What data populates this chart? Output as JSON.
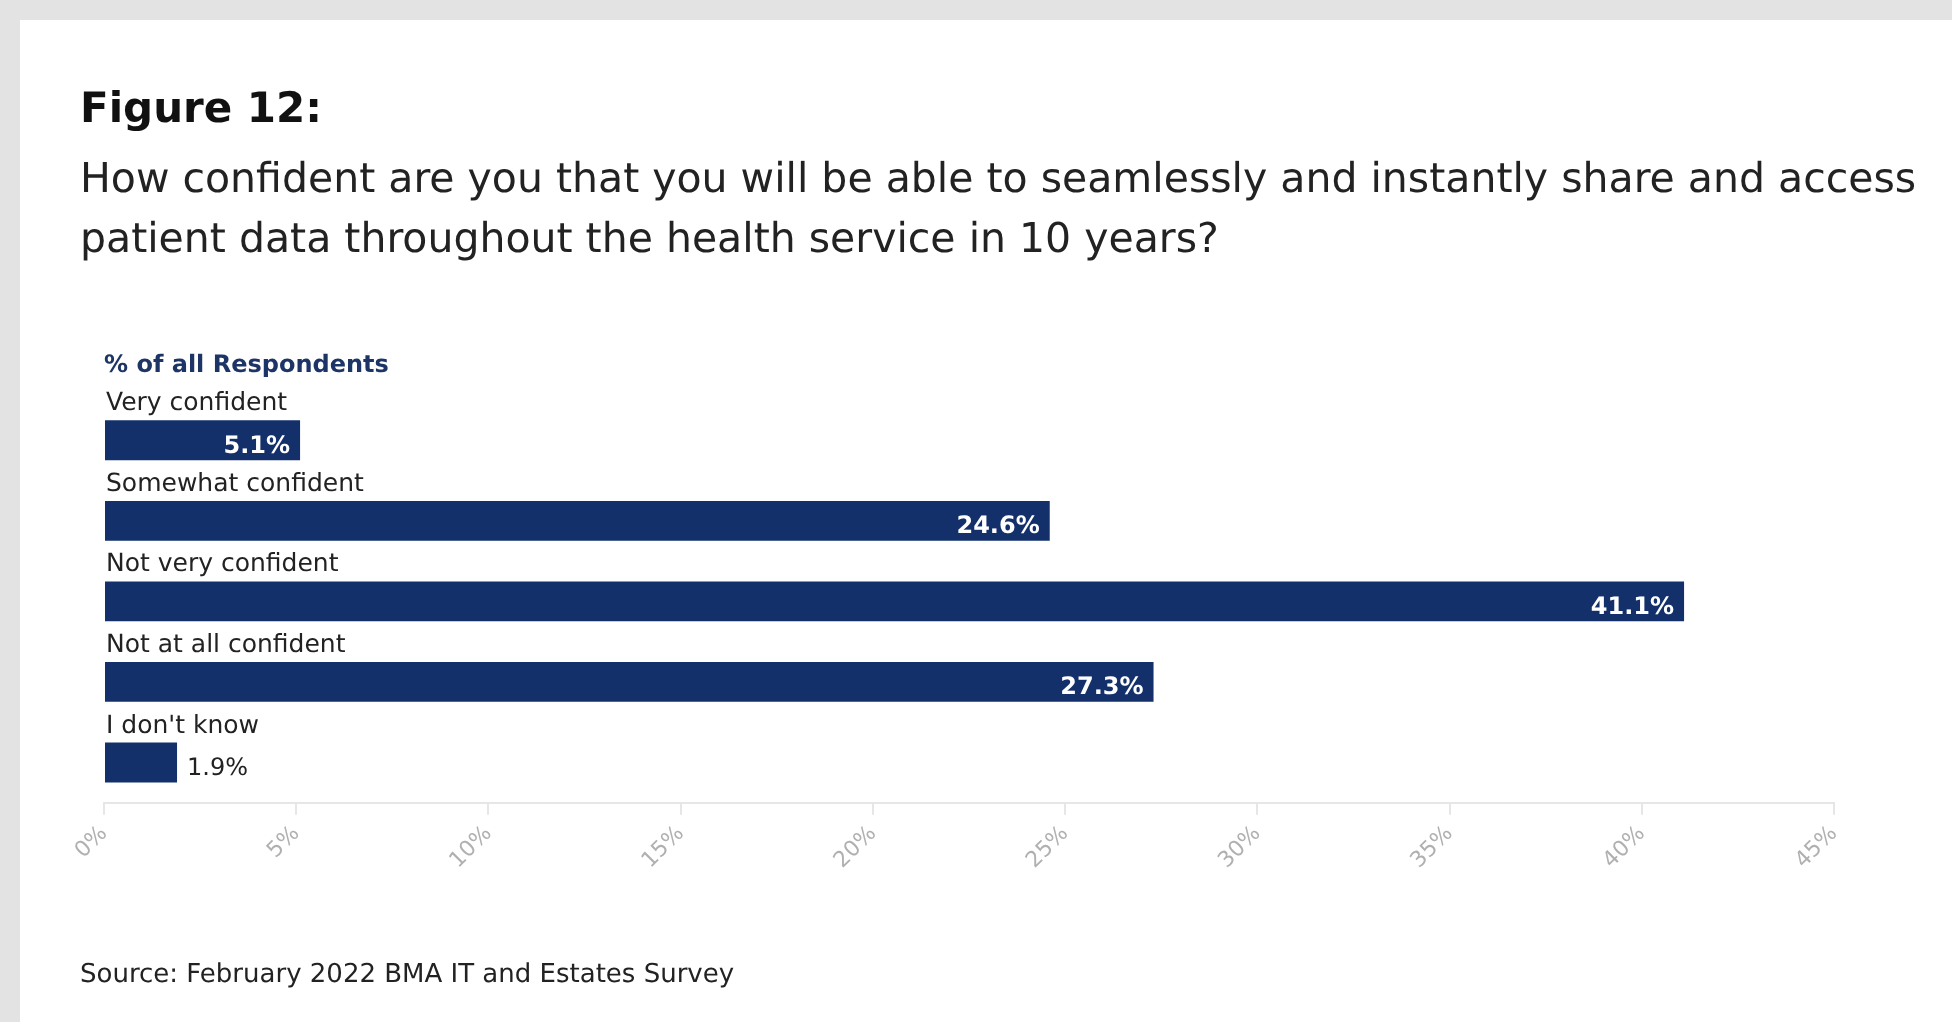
{
  "chart_data": {
    "type": "bar",
    "orientation": "horizontal",
    "title": "Figure 12:",
    "subtitle": "How confident are you that you will be able to seamlessly and instantly share and access patient data throughout the health service in 10 years?",
    "xlabel": "% of all Respondents",
    "categories": [
      "Very confident",
      "Somewhat confident",
      "Not very confident",
      "Not at all confident",
      "I don't know"
    ],
    "values": [
      5.1,
      24.6,
      41.1,
      27.3,
      1.9
    ],
    "value_labels": [
      "5.1%",
      "24.6%",
      "41.1%",
      "27.3%",
      "1.9%"
    ],
    "color": "#13306b",
    "xlim": [
      0,
      45
    ],
    "xticks": [
      {
        "value": 0,
        "label": "0%"
      },
      {
        "value": 5,
        "label": "5%"
      },
      {
        "value": 10,
        "label": "10%"
      },
      {
        "value": 15,
        "label": "15%"
      },
      {
        "value": 20,
        "label": "20%"
      },
      {
        "value": 25,
        "label": "25%"
      },
      {
        "value": 30,
        "label": "30%"
      },
      {
        "value": 35,
        "label": "35%"
      },
      {
        "value": 40,
        "label": "40%"
      },
      {
        "value": 45,
        "label": "45%"
      }
    ],
    "grid": false,
    "legend": false,
    "annotations": [
      "Source: February 2022 BMA IT and Estates Survey"
    ]
  }
}
